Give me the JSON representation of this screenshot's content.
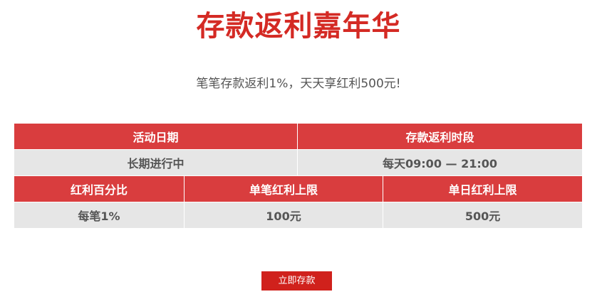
{
  "title": "存款返利嘉年华",
  "subtitle": "笔笔存款返利1%，天天享红利500元!",
  "table": {
    "row1_headers": [
      "活动日期",
      "存款返利时段"
    ],
    "row1_values": [
      "长期进行中",
      "每天09:00 — 21:00"
    ],
    "row2_headers": [
      "红利百分比",
      "单笔红利上限",
      "单日红利上限"
    ],
    "row2_values": [
      "每笔1%",
      "100元",
      "500元"
    ]
  },
  "button_label": "立即存款",
  "colors": {
    "title": "#d42a24",
    "header_bg": "#d93d3e",
    "cell_bg": "#e6e6e6",
    "button": "#d0211c"
  }
}
